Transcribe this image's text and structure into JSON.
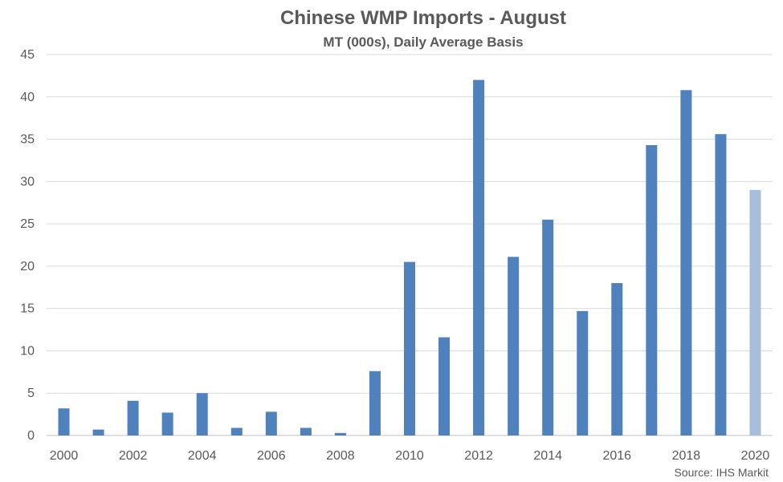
{
  "chart_data": {
    "type": "bar",
    "title": "Chinese WMP Imports - August",
    "subtitle": "MT (000s), Daily Average Basis",
    "source": "Source: IHS Markit",
    "categories": [
      "2000",
      "2001",
      "2002",
      "2003",
      "2004",
      "2005",
      "2006",
      "2007",
      "2008",
      "2009",
      "2010",
      "2011",
      "2012",
      "2013",
      "2014",
      "2015",
      "2016",
      "2017",
      "2018",
      "2019",
      "2020"
    ],
    "x_tick_labels": [
      "2000",
      "2002",
      "2004",
      "2006",
      "2008",
      "2010",
      "2012",
      "2014",
      "2016",
      "2018",
      "2020"
    ],
    "values": [
      3.2,
      0.7,
      4.1,
      2.7,
      5.0,
      0.9,
      2.8,
      0.9,
      0.3,
      7.6,
      20.5,
      11.6,
      42.0,
      21.1,
      25.5,
      14.7,
      18.0,
      34.3,
      40.8,
      35.6,
      29.0
    ],
    "ylim": [
      0,
      45
    ],
    "y_ticks": [
      0,
      5,
      10,
      15,
      20,
      25,
      30,
      35,
      40,
      45
    ],
    "xlabel": "",
    "ylabel": "",
    "grid": true,
    "legend": "none",
    "colors": {
      "bar": "#4f81bd",
      "highlight_bar": "#a6bddb",
      "grid": "#d9d9d9",
      "text": "#595959"
    },
    "highlight_categories": [
      "2020"
    ]
  }
}
